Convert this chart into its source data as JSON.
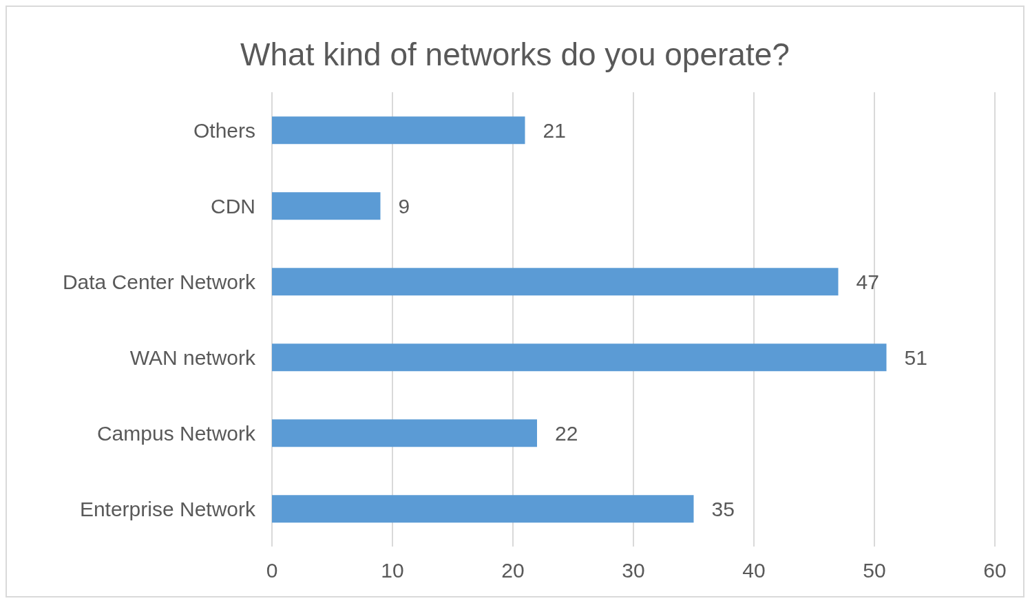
{
  "chart_data": {
    "type": "bar",
    "orientation": "horizontal",
    "title": "What kind of networks do you operate?",
    "categories": [
      "Others",
      "CDN",
      "Data Center Network",
      "WAN network",
      "Campus Network",
      "Enterprise Network"
    ],
    "values": [
      21,
      9,
      47,
      51,
      22,
      35
    ],
    "color": "#5b9bd5",
    "xlim": [
      0,
      60
    ],
    "xticks": [
      0,
      10,
      20,
      30,
      40,
      50,
      60
    ],
    "grid": "x",
    "data_labels": true
  }
}
